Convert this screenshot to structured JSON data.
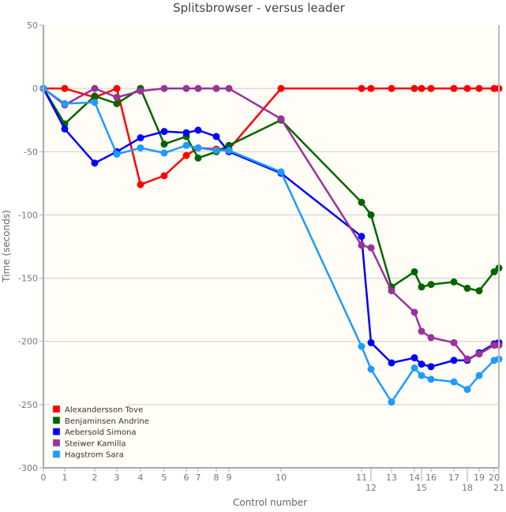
{
  "chart_data": {
    "type": "line",
    "title": "Splitsbrowser - versus leader",
    "xlabel": "Control number",
    "ylabel": "Time (seconds)",
    "ylim": [
      -300,
      50
    ],
    "yticks": [
      50,
      0,
      -50,
      -100,
      -150,
      -200,
      -250,
      -300
    ],
    "grid": true,
    "legend_position": "bottom-left",
    "x_tick_labels": [
      "0",
      "1",
      "2",
      "3",
      "4",
      "5",
      "6",
      "7",
      "8",
      "9",
      "10",
      "11",
      "12",
      "13",
      "14",
      "15",
      "16",
      "17",
      "18",
      "19",
      "20",
      "21"
    ],
    "x": [
      0,
      81,
      195,
      279,
      369,
      459,
      543,
      588,
      657,
      705,
      903,
      1209,
      1245,
      1323,
      1410,
      1437,
      1473,
      1560,
      1611,
      1656,
      1713,
      1731
    ],
    "xlim": [
      0,
      1731
    ],
    "series": [
      {
        "name": "Alexandersson Tove",
        "color": "#ff0000",
        "values": [
          0,
          0,
          -7,
          0,
          -76,
          -69,
          -53,
          -47,
          -48,
          -48,
          0,
          0,
          0,
          0,
          0,
          0,
          0,
          0,
          0,
          0,
          0,
          0
        ]
      },
      {
        "name": "Benjaminsen Andrine",
        "color": "#006400",
        "values": [
          0,
          -28,
          -6,
          -12,
          0,
          -44,
          -38,
          -55,
          -50,
          -45,
          -25,
          -90,
          -100,
          -157,
          -145,
          -157,
          -155,
          -153,
          -158,
          -160,
          -145,
          -142
        ]
      },
      {
        "name": "Aebersold Simona",
        "color": "#0000ff",
        "values": [
          0,
          -32,
          -59,
          -50,
          -39,
          -34,
          -35,
          -33,
          -38,
          -50,
          -67,
          -117,
          -201,
          -217,
          -213,
          -218,
          -220,
          -215,
          -215,
          -209,
          -202,
          -201
        ]
      },
      {
        "name": "Steiwer Kamilla",
        "color": "#993399",
        "values": [
          0,
          -13,
          0,
          -7,
          -2,
          0,
          0,
          0,
          0,
          0,
          -24,
          -124,
          -126,
          -160,
          -177,
          -192,
          -197,
          -201,
          -214,
          -210,
          -203,
          -203
        ]
      },
      {
        "name": "Hagstrom Sara",
        "color": "#1e9bff",
        "values": [
          0,
          -12,
          -11,
          -52,
          -47,
          -51,
          -45,
          -47,
          -49,
          -49,
          -66,
          -204,
          -222,
          -248,
          -221,
          -227,
          -230,
          -232,
          -238,
          -227,
          -215,
          -214
        ]
      }
    ]
  }
}
